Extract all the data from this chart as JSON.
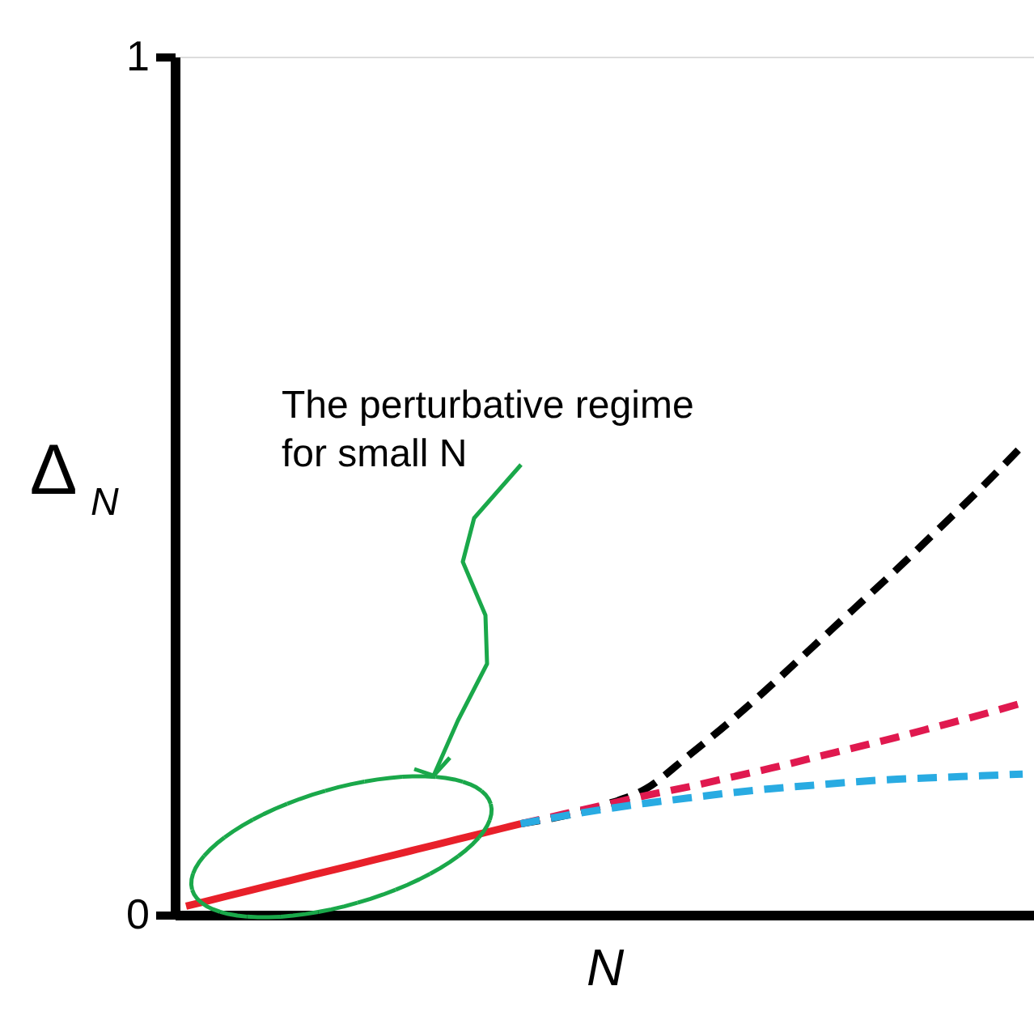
{
  "chart_data": {
    "type": "line",
    "xlabel": "N",
    "ylabel": "Δ$_{N}$",
    "categories": [
      null,
      null,
      null,
      null,
      null,
      null,
      null,
      null,
      null,
      null,
      null,
      null,
      null,
      null,
      null,
      null,
      null,
      null,
      null,
      null,
      null
    ],
    "series": [
      {
        "color": "#e8202a",
        "line_style": "solid",
        "values": [
          0.01,
          0.022,
          0.034,
          0.046,
          0.058,
          0.07,
          0.082,
          0.094,
          0.106,
          null,
          null,
          null,
          null,
          null,
          null,
          null,
          null,
          null,
          null,
          null,
          null
        ]
      },
      {
        "color": "#000000",
        "line_style": "dashed",
        "values": [
          null,
          null,
          null,
          null,
          null,
          null,
          null,
          null,
          0.106,
          0.115,
          0.128,
          0.147,
          0.185,
          0.225,
          0.268,
          0.313,
          0.358,
          0.403,
          0.45,
          0.497,
          0.547
        ]
      },
      {
        "color": "#e0194f",
        "line_style": "dashed",
        "values": [
          null,
          null,
          null,
          null,
          null,
          null,
          null,
          null,
          0.106,
          0.117,
          0.128,
          0.139,
          0.149,
          0.16,
          0.171,
          0.183,
          0.195,
          0.207,
          0.22,
          0.233,
          0.247
        ]
      },
      {
        "color": "#29abe2",
        "line_style": "dashed",
        "values": [
          null,
          null,
          null,
          null,
          null,
          null,
          null,
          null,
          0.106,
          0.115,
          0.123,
          0.13,
          0.136,
          0.142,
          0.147,
          0.151,
          0.155,
          0.158,
          0.16,
          0.162,
          0.164
        ]
      }
    ],
    "ylim": [
      0,
      1
    ],
    "yticks": [
      0,
      1
    ],
    "tick_labels": "y",
    "grid": false,
    "legend": false,
    "marker": "none",
    "annotations": [
      "The perturbative regime\n for small N"
    ]
  }
}
